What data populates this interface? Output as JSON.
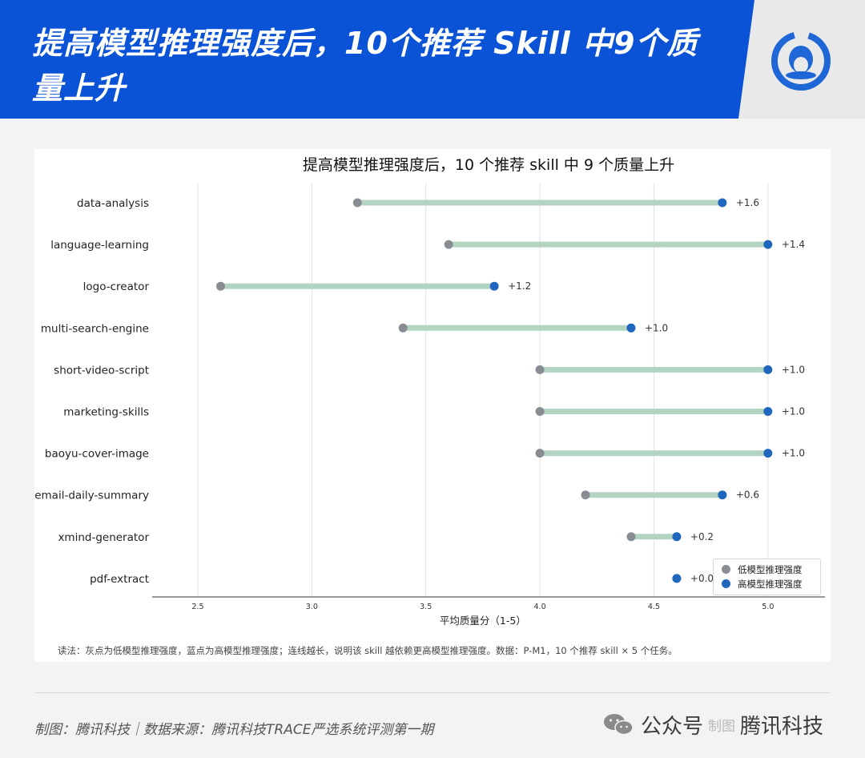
{
  "header": {
    "title": "提高模型推理强度后，10个推荐 Skill 中9个质量上升",
    "colors": {
      "banner": "#0a52d6",
      "corner": "#e9e9e9"
    }
  },
  "chart_data": {
    "type": "dumbbell",
    "title": "提高模型推理强度后，10 个推荐 skill 中 9 个质量上升",
    "xlabel": "平均质量分（1-5）",
    "ylabel": "",
    "xlim": [
      2.3,
      5.25
    ],
    "xticks": [
      "2.5",
      "3.0",
      "3.5",
      "4.0",
      "4.5",
      "5.0"
    ],
    "grid": "vertical",
    "legend_position": "bottom-right",
    "categories": [
      "data-analysis",
      "language-learning",
      "logo-creator",
      "multi-search-engine",
      "short-video-script",
      "marketing-skills",
      "baoyu-cover-image",
      "email-daily-summary",
      "xmind-generator",
      "pdf-extract"
    ],
    "series": [
      {
        "name": "低模型推理强度",
        "color": "#888d94",
        "values": [
          3.2,
          3.6,
          2.6,
          3.4,
          4.0,
          4.0,
          4.0,
          4.2,
          4.4,
          4.6
        ]
      },
      {
        "name": "高模型推理强度",
        "color": "#2066bd",
        "values": [
          4.8,
          5.0,
          3.8,
          4.4,
          5.0,
          5.0,
          5.0,
          4.8,
          4.6,
          4.6
        ]
      }
    ],
    "deltas": [
      "+1.6",
      "+1.4",
      "+1.2",
      "+1.0",
      "+1.0",
      "+1.0",
      "+1.0",
      "+0.6",
      "+0.2",
      "+0.0"
    ],
    "connector_color": "#b3d4c1",
    "note": "读法：灰点为低模型推理强度，蓝点为高模型推理强度；连线越长，说明该 skill 越依赖更高模型推理强度。数据：P-M1，10 个推荐 skill × 5 个任务。"
  },
  "footer": {
    "credit": "制图：腾讯科技｜数据来源：腾讯科技TRACE严选系统评测第一期",
    "account": "公众号",
    "overlay": "制图",
    "brand": "腾讯科技"
  }
}
